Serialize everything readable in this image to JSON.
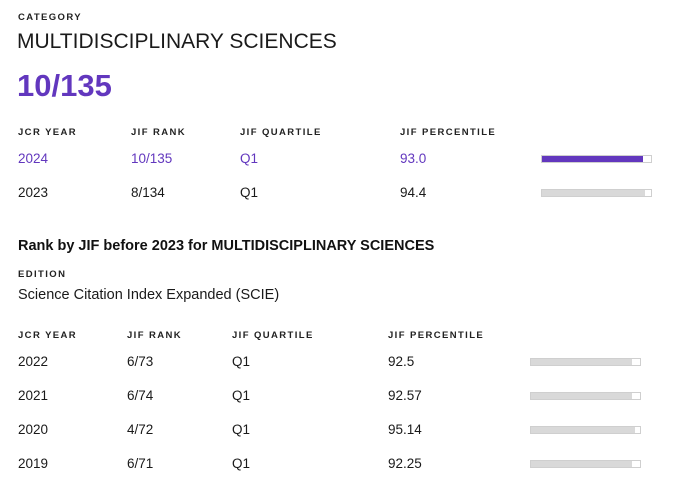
{
  "category": {
    "label": "CATEGORY",
    "name": "MULTIDISCIPLINARY SCIENCES",
    "rank": "10/135"
  },
  "current_table": {
    "headers": {
      "year": "JCR YEAR",
      "rank": "JIF RANK",
      "quartile": "JIF QUARTILE",
      "percentile": "JIF PERCENTILE"
    },
    "rows": [
      {
        "year": "2024",
        "rank": "10/135",
        "quartile": "Q1",
        "percentile": "93.0",
        "percentile_value": 93.0
      },
      {
        "year": "2023",
        "rank": "8/134",
        "quartile": "Q1",
        "percentile": "94.4",
        "percentile_value": 94.4
      }
    ]
  },
  "historic": {
    "heading": "Rank by JIF before 2023 for MULTIDISCIPLINARY SCIENCES",
    "edition_label": "EDITION",
    "edition_value": "Science Citation Index Expanded (SCIE)",
    "headers": {
      "year": "JCR YEAR",
      "rank": "JIF RANK",
      "quartile": "JIF QUARTILE",
      "percentile": "JIF PERCENTILE"
    },
    "rows": [
      {
        "year": "2022",
        "rank": "6/73",
        "quartile": "Q1",
        "percentile": "92.5",
        "percentile_value": 92.5
      },
      {
        "year": "2021",
        "rank": "6/74",
        "quartile": "Q1",
        "percentile": "92.57",
        "percentile_value": 92.57
      },
      {
        "year": "2020",
        "rank": "4/72",
        "quartile": "Q1",
        "percentile": "95.14",
        "percentile_value": 95.14
      },
      {
        "year": "2019",
        "rank": "6/71",
        "quartile": "Q1",
        "percentile": "92.25",
        "percentile_value": 92.25
      }
    ]
  },
  "colors": {
    "accent": "#6237be",
    "bar_past": "#d9d9d9",
    "bar_border": "#cfcfcf"
  }
}
